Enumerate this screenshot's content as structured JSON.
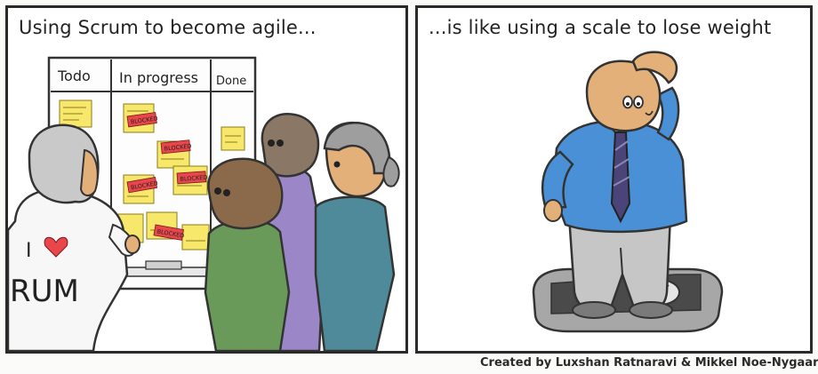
{
  "left_panel": {
    "caption": "Using Scrum to become agile...",
    "board": {
      "columns": [
        "Todo",
        "In progress",
        "Done"
      ],
      "blocker_label": "BLOCKED"
    },
    "shirt_text": {
      "top": "I",
      "bottom": "RUM"
    }
  },
  "right_panel": {
    "caption": "...is like using a scale to lose weight"
  },
  "credit": "Created by Luxshan Ratnaravi & Mikkel Noe-Nygaard",
  "colors": {
    "sticky_yellow": "#f7e86b",
    "blocker_red": "#e8464b",
    "shirt_blue": "#4a90d6",
    "tie_purple": "#4b4478",
    "skin": "#e3b07a"
  }
}
